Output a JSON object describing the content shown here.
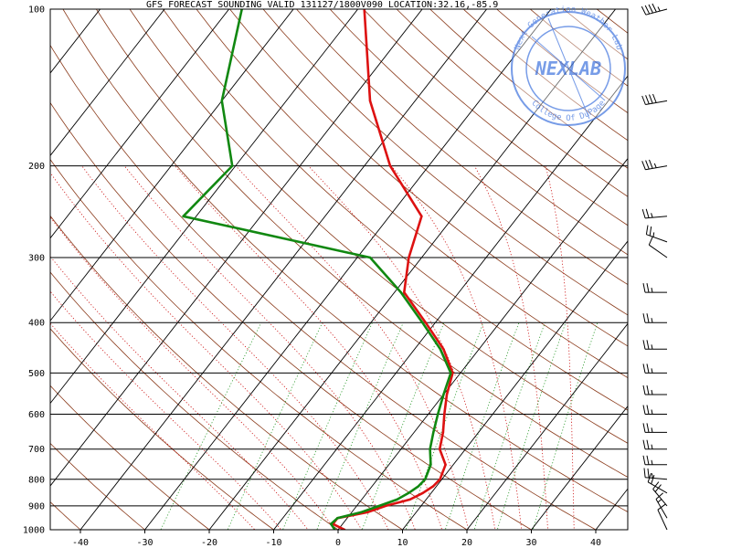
{
  "chart_data": {
    "type": "line",
    "chart_kind": "Skew-T log-P sounding",
    "title": "GFS FORECAST SOUNDING VALID 131127/1800V090   LOCATION:32.16,-85.9",
    "x_axis": {
      "range": [
        -45,
        45
      ],
      "ticks": [
        -40,
        -30,
        -20,
        -10,
        0,
        10,
        20,
        30,
        40
      ],
      "unit": "degC"
    },
    "y_axis": {
      "scale": "log",
      "range": [
        1000,
        100
      ],
      "ticks": [
        100,
        200,
        300,
        400,
        500,
        600,
        700,
        800,
        900,
        1000
      ],
      "unit": "hPa"
    },
    "series": [
      {
        "key": "temperature",
        "color": "#dd1111",
        "points": [
          {
            "p": 1000,
            "t": 1.0
          },
          {
            "p": 975,
            "t": -1.5
          },
          {
            "p": 950,
            "t": -1.5
          },
          {
            "p": 925,
            "t": 2.5
          },
          {
            "p": 900,
            "t": 4.5
          },
          {
            "p": 875,
            "t": 7.5
          },
          {
            "p": 850,
            "t": 8.7
          },
          {
            "p": 825,
            "t": 9.5
          },
          {
            "p": 800,
            "t": 9.7
          },
          {
            "p": 750,
            "t": 8.8
          },
          {
            "p": 700,
            "t": 6.0
          },
          {
            "p": 650,
            "t": 4.5
          },
          {
            "p": 600,
            "t": 2.5
          },
          {
            "p": 550,
            "t": 0.5
          },
          {
            "p": 500,
            "t": -1.2
          },
          {
            "p": 450,
            "t": -5.5
          },
          {
            "p": 400,
            "t": -11.5
          },
          {
            "p": 350,
            "t": -18.5
          },
          {
            "p": 300,
            "t": -22.0
          },
          {
            "p": 250,
            "t": -25.0
          },
          {
            "p": 200,
            "t": -36.0
          },
          {
            "p": 150,
            "t": -47.0
          },
          {
            "p": 100,
            "t": -59.0
          }
        ]
      },
      {
        "key": "dewpoint",
        "color": "#118811",
        "points": [
          {
            "p": 1000,
            "t": -0.5
          },
          {
            "p": 975,
            "t": -1.8
          },
          {
            "p": 950,
            "t": -1.5
          },
          {
            "p": 925,
            "t": 1.5
          },
          {
            "p": 900,
            "t": 3.5
          },
          {
            "p": 875,
            "t": 5.5
          },
          {
            "p": 850,
            "t": 6.5
          },
          {
            "p": 825,
            "t": 7.2
          },
          {
            "p": 800,
            "t": 7.4
          },
          {
            "p": 750,
            "t": 6.5
          },
          {
            "p": 700,
            "t": 4.5
          },
          {
            "p": 650,
            "t": 3.0
          },
          {
            "p": 600,
            "t": 1.5
          },
          {
            "p": 550,
            "t": 0.0
          },
          {
            "p": 500,
            "t": -1.5
          },
          {
            "p": 450,
            "t": -6.0
          },
          {
            "p": 400,
            "t": -12.0
          },
          {
            "p": 350,
            "t": -19.0
          },
          {
            "p": 300,
            "t": -28.0
          },
          {
            "p": 250,
            "t": -62.0
          },
          {
            "p": 200,
            "t": -60.5
          },
          {
            "p": 150,
            "t": -70.0
          },
          {
            "p": 100,
            "t": -78.0
          }
        ]
      }
    ],
    "wind_barbs": [
      {
        "p": 100,
        "dir": 255,
        "kt": 45
      },
      {
        "p": 150,
        "dir": 260,
        "kt": 40
      },
      {
        "p": 200,
        "dir": 260,
        "kt": 35
      },
      {
        "p": 250,
        "dir": 265,
        "kt": 25
      },
      {
        "p": 280,
        "dir": 290,
        "kt": 25
      },
      {
        "p": 300,
        "dir": 305,
        "kt": 10
      },
      {
        "p": 350,
        "dir": 270,
        "kt": 25
      },
      {
        "p": 400,
        "dir": 270,
        "kt": 25
      },
      {
        "p": 450,
        "dir": 270,
        "kt": 25
      },
      {
        "p": 500,
        "dir": 270,
        "kt": 25
      },
      {
        "p": 550,
        "dir": 270,
        "kt": 25
      },
      {
        "p": 600,
        "dir": 270,
        "kt": 25
      },
      {
        "p": 650,
        "dir": 270,
        "kt": 25
      },
      {
        "p": 700,
        "dir": 270,
        "kt": 25
      },
      {
        "p": 750,
        "dir": 270,
        "kt": 25
      },
      {
        "p": 800,
        "dir": 275,
        "kt": 25
      },
      {
        "p": 850,
        "dir": 300,
        "kt": 20
      },
      {
        "p": 900,
        "dir": 320,
        "kt": 20
      },
      {
        "p": 950,
        "dir": 330,
        "kt": 15
      },
      {
        "p": 1000,
        "dir": 335,
        "kt": 10
      }
    ]
  },
  "watermark": {
    "center_text": "NEXLAB",
    "ring_top": "Next Generation Weather Lab",
    "ring_bottom": "College Of DuPage",
    "color": "#4a7be0"
  }
}
